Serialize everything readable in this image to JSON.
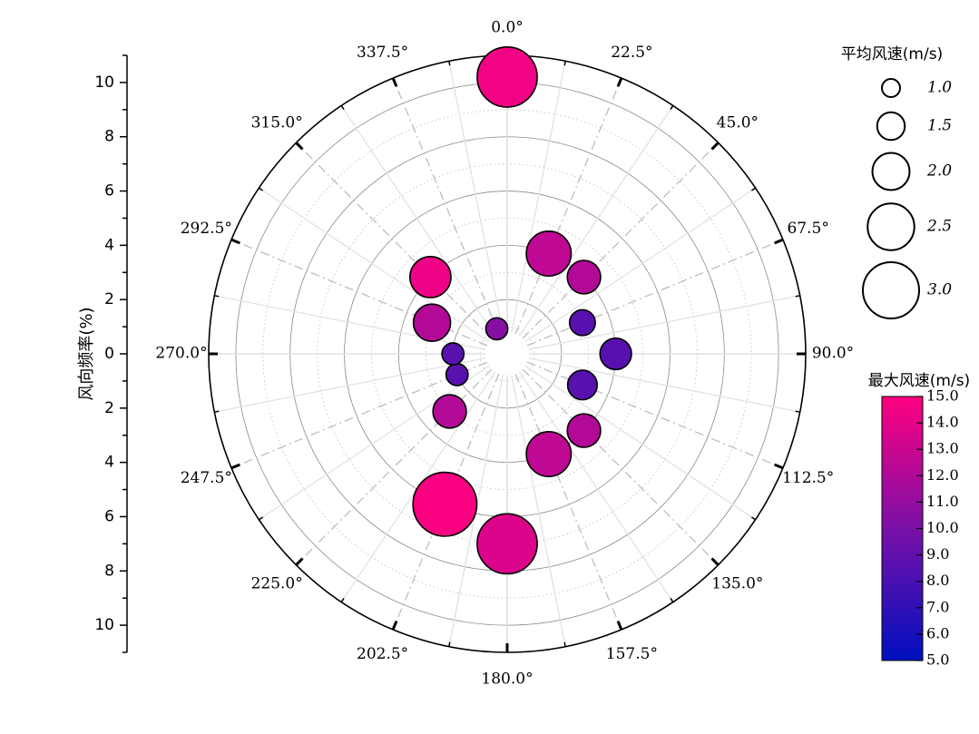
{
  "chart_data": {
    "type": "polar-bubble",
    "radial_axis": {
      "title": "风向频率(%)",
      "range": [
        0,
        11
      ],
      "ticks": [
        0,
        2,
        4,
        6,
        8,
        10
      ],
      "tick_labels_top": [
        "10",
        "8",
        "6",
        "4",
        "2",
        "0"
      ],
      "tick_labels_bottom": [
        "2",
        "4",
        "6",
        "8",
        "10"
      ]
    },
    "angular_axis": {
      "labels": [
        "0.0°",
        "22.5°",
        "45.0°",
        "67.5°",
        "90.0°",
        "112.5°",
        "135.0°",
        "157.5°",
        "180.0°",
        "202.5°",
        "225.0°",
        "247.5°",
        "270.0°",
        "292.5°",
        "315.0°",
        "337.5°"
      ],
      "step_deg": 22.5,
      "zero": "top",
      "direction": "clockwise"
    },
    "grid": true,
    "size_legend": {
      "title": "平均风速(m/s)",
      "placement": "top-right",
      "entries": [
        {
          "label": "1.0",
          "value": 1.0
        },
        {
          "label": "1.5",
          "value": 1.5
        },
        {
          "label": "2.0",
          "value": 2.0
        },
        {
          "label": "2.5",
          "value": 2.5
        },
        {
          "label": "3.0",
          "value": 3.0
        }
      ]
    },
    "color_bar": {
      "title": "最大风速(m/s)",
      "placement": "right",
      "range": [
        5.0,
        15.0
      ],
      "tick_labels": [
        "15.0",
        "14.0",
        "13.0",
        "12.0",
        "11.0",
        "10.0",
        "9.0",
        "8.0",
        "7.0",
        "6.0",
        "5.0"
      ],
      "color_low": "#0010c0",
      "color_mid": "#7a10a8",
      "color_high": "#ff0080"
    },
    "points": [
      {
        "direction": 0.0,
        "frequency": 10.2,
        "avg_speed": 3.2,
        "max_speed": 14.5
      },
      {
        "direction": 22.5,
        "frequency": 4.0,
        "avg_speed": 2.4,
        "max_speed": 12.6
      },
      {
        "direction": 45.0,
        "frequency": 4.0,
        "avg_speed": 1.8,
        "max_speed": 12.1
      },
      {
        "direction": 67.5,
        "frequency": 3.0,
        "avg_speed": 1.4,
        "max_speed": 8.6
      },
      {
        "direction": 90.0,
        "frequency": 4.0,
        "avg_speed": 1.7,
        "max_speed": 8.6
      },
      {
        "direction": 112.5,
        "frequency": 3.0,
        "avg_speed": 1.6,
        "max_speed": 8.6
      },
      {
        "direction": 135.0,
        "frequency": 4.0,
        "avg_speed": 1.8,
        "max_speed": 12.1
      },
      {
        "direction": 157.5,
        "frequency": 4.0,
        "avg_speed": 2.4,
        "max_speed": 12.6
      },
      {
        "direction": 180.0,
        "frequency": 7.0,
        "avg_speed": 3.2,
        "max_speed": 13.7
      },
      {
        "direction": 202.5,
        "frequency": 6.0,
        "avg_speed": 3.4,
        "max_speed": 14.8
      },
      {
        "direction": 225.0,
        "frequency": 3.0,
        "avg_speed": 1.8,
        "max_speed": 12.1
      },
      {
        "direction": 247.5,
        "frequency": 2.0,
        "avg_speed": 1.2,
        "max_speed": 8.6
      },
      {
        "direction": 270.0,
        "frequency": 2.0,
        "avg_speed": 1.2,
        "max_speed": 8.6
      },
      {
        "direction": 292.5,
        "frequency": 3.0,
        "avg_speed": 2.0,
        "max_speed": 12.1
      },
      {
        "direction": 315.0,
        "frequency": 4.0,
        "avg_speed": 2.2,
        "max_speed": 14.4
      },
      {
        "direction": 337.5,
        "frequency": 1.0,
        "avg_speed": 1.2,
        "max_speed": 10.4
      }
    ]
  }
}
